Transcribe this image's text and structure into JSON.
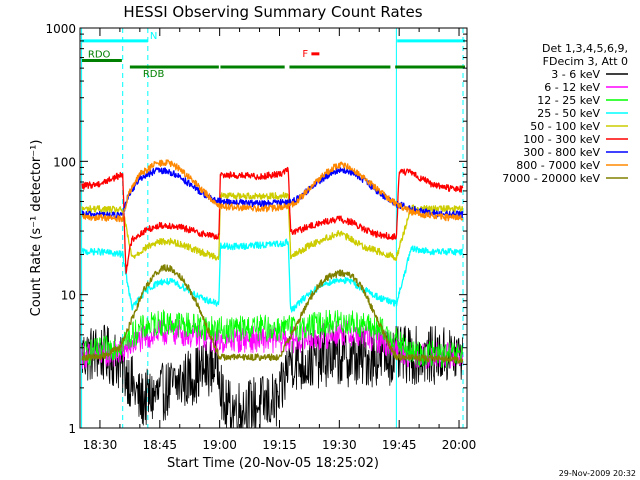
{
  "chart_data": {
    "type": "line",
    "title": "HESSI Observing Summary Count Rates",
    "xlabel": "Start Time (20-Nov-05 18:25:02)",
    "ylabel": "Count Rate (s⁻¹ detector⁻¹)",
    "yscale": "log",
    "ylim": [
      1,
      1000
    ],
    "xlim": [
      25.0,
      122.0
    ],
    "x_units": "minutes after 18:00",
    "x_ticks": [
      {
        "value": 30,
        "label": "18:30"
      },
      {
        "value": 45,
        "label": "18:45"
      },
      {
        "value": 60,
        "label": "19:00"
      },
      {
        "value": 75,
        "label": "19:15"
      },
      {
        "value": 90,
        "label": "19:30"
      },
      {
        "value": 105,
        "label": "19:45"
      },
      {
        "value": 120,
        "label": "20:00"
      }
    ],
    "y_ticks": [
      {
        "value": 1,
        "label": "1"
      },
      {
        "value": 10,
        "label": "10"
      },
      {
        "value": 100,
        "label": "100"
      },
      {
        "value": 1000,
        "label": "1000"
      }
    ],
    "legend": {
      "placement": "right",
      "header": [
        "Det 1,3,4,5,6,9,",
        "FDecim 3, Att 0"
      ]
    },
    "series": [
      {
        "name": "3 - 6 keV",
        "color": "#000000",
        "x": [
          25.5,
          30,
          34,
          37,
          40,
          45,
          50,
          55,
          59.8,
          61,
          65,
          70,
          75,
          77.5,
          80,
          85,
          90,
          95,
          100,
          104.3,
          108,
          113,
          117,
          121
        ],
        "y": [
          3.5,
          3.7,
          3.3,
          2.5,
          1.6,
          1.8,
          2.2,
          2.6,
          3.2,
          1.4,
          1.4,
          1.5,
          1.6,
          3.4,
          3.0,
          3.3,
          3.4,
          3.3,
          3.4,
          3.5,
          3.5,
          3.5,
          3.5,
          3.5
        ]
      },
      {
        "name": "6 - 12 keV",
        "color": "#ff00ff",
        "x": [
          25.5,
          30,
          35,
          40,
          45,
          50,
          55,
          59.8,
          61,
          65,
          70,
          75,
          77.5,
          80,
          85,
          90,
          95,
          100,
          104.3,
          108,
          113,
          117,
          121
        ],
        "y": [
          3.5,
          3.6,
          3.6,
          4.6,
          5.2,
          5.2,
          4.8,
          4.5,
          4.5,
          4.6,
          4.6,
          4.6,
          4.6,
          4.6,
          4.8,
          5.2,
          5.0,
          4.6,
          4.0,
          3.5,
          3.5,
          3.5,
          3.5
        ]
      },
      {
        "name": "12 - 25 keV",
        "color": "#00ff00",
        "x": [
          25.5,
          30,
          35,
          40,
          45,
          50,
          55,
          59.8,
          61,
          65,
          70,
          75,
          77.5,
          80,
          85,
          90,
          95,
          100,
          104.3,
          108,
          113,
          117,
          121
        ],
        "y": [
          3.6,
          3.8,
          4.2,
          5.5,
          6.2,
          6.0,
          5.8,
          5.5,
          5.4,
          5.6,
          5.6,
          5.6,
          5.6,
          5.6,
          6.0,
          6.3,
          6.0,
          5.5,
          4.5,
          3.6,
          3.6,
          3.5,
          3.5
        ]
      },
      {
        "name": "25 - 50 keV",
        "color": "#00ffff",
        "x": [
          25.5,
          30,
          35.7,
          38,
          42,
          45,
          48,
          52,
          55,
          59.8,
          60.2,
          65,
          70,
          75,
          77.2,
          77.8,
          82,
          86,
          90,
          93,
          96,
          100,
          104.3,
          108,
          113,
          117,
          121
        ],
        "y": [
          21,
          21,
          20,
          8.0,
          11,
          12.5,
          12.5,
          11,
          9.5,
          8.5,
          23,
          23,
          23.5,
          24,
          25,
          7.5,
          10,
          12,
          13,
          12.5,
          11,
          9.5,
          8.5,
          22,
          21,
          21,
          21
        ]
      },
      {
        "name": "50 - 100 keV",
        "color": "#cccc00",
        "x": [
          25.5,
          30,
          35.7,
          38,
          42,
          45,
          48,
          52,
          55,
          59.8,
          60.2,
          65,
          70,
          75,
          77.2,
          77.8,
          82,
          86,
          90,
          93,
          96,
          100,
          104.3,
          108,
          113,
          117,
          121
        ],
        "y": [
          44,
          44,
          43,
          19,
          23,
          25,
          25,
          23,
          21,
          19,
          55,
          55,
          55,
          55,
          56,
          19,
          23,
          26,
          29,
          26,
          23,
          21,
          19,
          45,
          44,
          44,
          44
        ]
      },
      {
        "name": "100 - 300 keV",
        "color": "#ff0000",
        "x": [
          25.5,
          30,
          35.7,
          36.5,
          38,
          42,
          45,
          48,
          52,
          55,
          59.8,
          60.2,
          65,
          70,
          75,
          77.2,
          77.8,
          82,
          86,
          90,
          93,
          96,
          100,
          104.3,
          105,
          108,
          113,
          117,
          121
        ],
        "y": [
          65,
          68,
          80,
          15,
          26,
          31,
          33,
          33,
          31,
          29,
          27,
          80,
          78,
          77,
          80,
          88,
          29,
          32,
          35,
          37,
          35,
          31,
          28,
          27,
          85,
          82,
          68,
          63,
          62
        ]
      },
      {
        "name": "300 - 800 keV",
        "color": "#0000ff",
        "x": [
          25.5,
          30,
          35.7,
          37,
          40,
          44,
          47,
          50,
          54,
          58,
          60.2,
          65,
          70,
          75,
          77.5,
          80,
          84,
          88,
          90,
          93,
          96,
          100,
          104.3,
          108,
          113,
          117,
          121
        ],
        "y": [
          40,
          40,
          39,
          55,
          75,
          85,
          84,
          77,
          62,
          52,
          50,
          49,
          48,
          49,
          50,
          53,
          68,
          82,
          86,
          83,
          73,
          58,
          48,
          44,
          41,
          40,
          40
        ]
      },
      {
        "name": "800 - 7000 keV",
        "color": "#ff8800",
        "x": [
          25.5,
          30,
          35.7,
          37,
          40,
          44,
          47,
          50,
          54,
          58,
          60.2,
          65,
          70,
          75,
          77.5,
          80,
          84,
          88,
          90,
          93,
          96,
          100,
          104.3,
          108,
          113,
          117,
          121
        ],
        "y": [
          38,
          38,
          37,
          55,
          80,
          96,
          98,
          88,
          68,
          52,
          46,
          45,
          44,
          45,
          46,
          52,
          70,
          88,
          94,
          90,
          76,
          60,
          48,
          42,
          39,
          38,
          38
        ]
      },
      {
        "name": "7000 - 20000 keV",
        "color": "#808000",
        "x": [
          25.5,
          30,
          35,
          38,
          41,
          44,
          46,
          48,
          51,
          54,
          57,
          60,
          63,
          66,
          70,
          75,
          78,
          81,
          84,
          87,
          90,
          93,
          96,
          99,
          102,
          104.3,
          108,
          113,
          117,
          121
        ],
        "y": [
          3.4,
          3.4,
          4.0,
          6.5,
          11,
          14.5,
          16,
          15.5,
          13,
          9,
          5.5,
          3.4,
          3.4,
          3.4,
          3.4,
          3.4,
          5.0,
          7.5,
          11,
          13.5,
          14.5,
          14,
          11,
          7,
          4.5,
          3.4,
          3.4,
          3.3,
          3.3,
          3.2
        ]
      }
    ],
    "annotations": {
      "status_bars": [
        {
          "label": "N",
          "color": "#00ffff",
          "y": 800,
          "segments": [
            [
              25.5,
              42
            ],
            [
              104.5,
              121.5
            ]
          ]
        },
        {
          "label": "RDO",
          "color": "#008000",
          "y": 570,
          "segments": [
            [
              25.5,
              35.5
            ]
          ]
        },
        {
          "label": "RDB",
          "color": "#008000",
          "y": 510,
          "segments": [
            [
              37.5,
              59.8
            ],
            [
              60.2,
              76.3
            ],
            [
              77.5,
              102.8
            ],
            [
              104,
              121.5
            ]
          ]
        },
        {
          "label": "F",
          "color": "#ff0000",
          "y": 640,
          "segments": [
            [
              83,
              85
            ]
          ]
        }
      ],
      "vlines_solid": [
        {
          "x": 25.4,
          "color": "#00ffff"
        },
        {
          "x": 104.3,
          "color": "#00ffff"
        }
      ],
      "vlines_dashed": [
        {
          "x": 35.7,
          "color": "#00ffff"
        },
        {
          "x": 42.0,
          "color": "#00ffff"
        },
        {
          "x": 121.0,
          "color": "#00ffff"
        }
      ]
    },
    "grid": false
  },
  "footer": {
    "timestamp": "29-Nov-2009 20:32"
  }
}
